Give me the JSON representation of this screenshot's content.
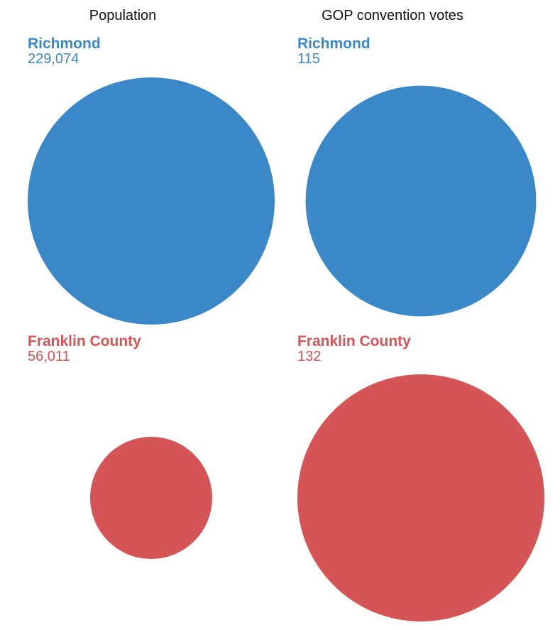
{
  "chart_data": {
    "type": "bubble",
    "panels": [
      {
        "title": "Population",
        "items": [
          {
            "name": "Richmond",
            "value": 229074,
            "display": "229,074",
            "color": "#3b88c8"
          },
          {
            "name": "Franklin County",
            "value": 56011,
            "display": "56,011",
            "color": "#d55455"
          }
        ]
      },
      {
        "title": "GOP convention votes",
        "items": [
          {
            "name": "Richmond",
            "value": 115,
            "display": "115",
            "color": "#3b88c8"
          },
          {
            "name": "Franklin County",
            "value": 132,
            "display": "132",
            "color": "#d55455"
          }
        ]
      }
    ]
  }
}
